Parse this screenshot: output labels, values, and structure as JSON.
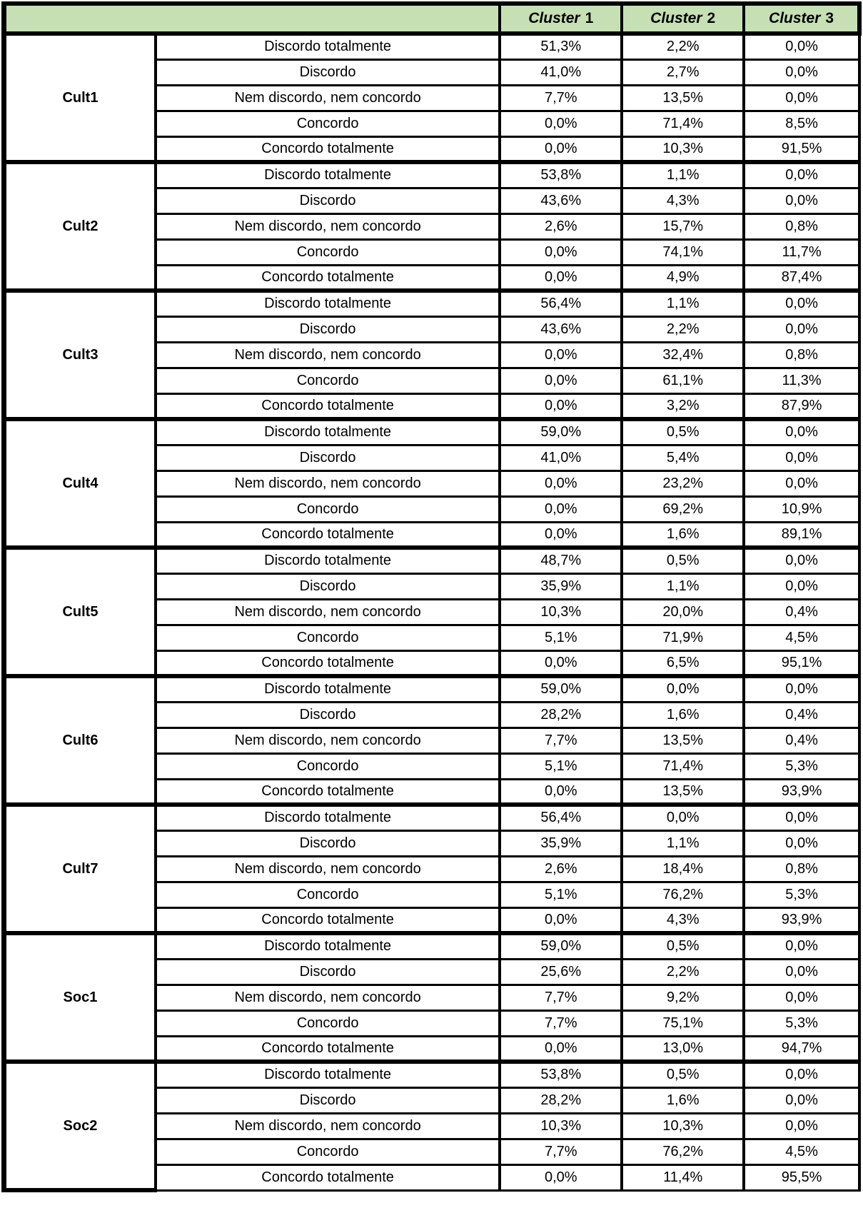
{
  "colors": {
    "header_bg": "#c6e0b4",
    "border": "#000000",
    "text": "#000000"
  },
  "header": {
    "corner": "",
    "clusters": [
      {
        "word": "Cluster",
        "number": "1"
      },
      {
        "word": "Cluster",
        "number": "2"
      },
      {
        "word": "Cluster",
        "number": "3"
      }
    ]
  },
  "chart_data": {
    "type": "table",
    "title": "",
    "columns": [
      "Cluster 1",
      "Cluster 2",
      "Cluster 3"
    ],
    "likert_levels": [
      "Discordo totalmente",
      "Discordo",
      "Nem discordo, nem concordo",
      "Concordo",
      "Concordo totalmente"
    ],
    "groups": [
      {
        "name": "Cult1",
        "rows": [
          [
            "51,3%",
            "2,2%",
            "0,0%"
          ],
          [
            "41,0%",
            "2,7%",
            "0,0%"
          ],
          [
            "7,7%",
            "13,5%",
            "0,0%"
          ],
          [
            "0,0%",
            "71,4%",
            "8,5%"
          ],
          [
            "0,0%",
            "10,3%",
            "91,5%"
          ]
        ]
      },
      {
        "name": "Cult2",
        "rows": [
          [
            "53,8%",
            "1,1%",
            "0,0%"
          ],
          [
            "43,6%",
            "4,3%",
            "0,0%"
          ],
          [
            "2,6%",
            "15,7%",
            "0,8%"
          ],
          [
            "0,0%",
            "74,1%",
            "11,7%"
          ],
          [
            "0,0%",
            "4,9%",
            "87,4%"
          ]
        ]
      },
      {
        "name": "Cult3",
        "rows": [
          [
            "56,4%",
            "1,1%",
            "0,0%"
          ],
          [
            "43,6%",
            "2,2%",
            "0,0%"
          ],
          [
            "0,0%",
            "32,4%",
            "0,8%"
          ],
          [
            "0,0%",
            "61,1%",
            "11,3%"
          ],
          [
            "0,0%",
            "3,2%",
            "87,9%"
          ]
        ]
      },
      {
        "name": "Cult4",
        "rows": [
          [
            "59,0%",
            "0,5%",
            "0,0%"
          ],
          [
            "41,0%",
            "5,4%",
            "0,0%"
          ],
          [
            "0,0%",
            "23,2%",
            "0,0%"
          ],
          [
            "0,0%",
            "69,2%",
            "10,9%"
          ],
          [
            "0,0%",
            "1,6%",
            "89,1%"
          ]
        ]
      },
      {
        "name": "Cult5",
        "rows": [
          [
            "48,7%",
            "0,5%",
            "0,0%"
          ],
          [
            "35,9%",
            "1,1%",
            "0,0%"
          ],
          [
            "10,3%",
            "20,0%",
            "0,4%"
          ],
          [
            "5,1%",
            "71,9%",
            "4,5%"
          ],
          [
            "0,0%",
            "6,5%",
            "95,1%"
          ]
        ]
      },
      {
        "name": "Cult6",
        "rows": [
          [
            "59,0%",
            "0,0%",
            "0,0%"
          ],
          [
            "28,2%",
            "1,6%",
            "0,4%"
          ],
          [
            "7,7%",
            "13,5%",
            "0,4%"
          ],
          [
            "5,1%",
            "71,4%",
            "5,3%"
          ],
          [
            "0,0%",
            "13,5%",
            "93,9%"
          ]
        ]
      },
      {
        "name": "Cult7",
        "rows": [
          [
            "56,4%",
            "0,0%",
            "0,0%"
          ],
          [
            "35,9%",
            "1,1%",
            "0,0%"
          ],
          [
            "2,6%",
            "18,4%",
            "0,8%"
          ],
          [
            "5,1%",
            "76,2%",
            "5,3%"
          ],
          [
            "0,0%",
            "4,3%",
            "93,9%"
          ]
        ]
      },
      {
        "name": "Soc1",
        "rows": [
          [
            "59,0%",
            "0,5%",
            "0,0%"
          ],
          [
            "25,6%",
            "2,2%",
            "0,0%"
          ],
          [
            "7,7%",
            "9,2%",
            "0,0%"
          ],
          [
            "7,7%",
            "75,1%",
            "5,3%"
          ],
          [
            "0,0%",
            "13,0%",
            "94,7%"
          ]
        ]
      },
      {
        "name": "Soc2",
        "rows": [
          [
            "53,8%",
            "0,5%",
            "0,0%"
          ],
          [
            "28,2%",
            "1,6%",
            "0,0%"
          ],
          [
            "10,3%",
            "10,3%",
            "0,0%"
          ],
          [
            "7,7%",
            "76,2%",
            "4,5%"
          ],
          [
            "0,0%",
            "11,4%",
            "95,5%"
          ]
        ]
      }
    ]
  }
}
